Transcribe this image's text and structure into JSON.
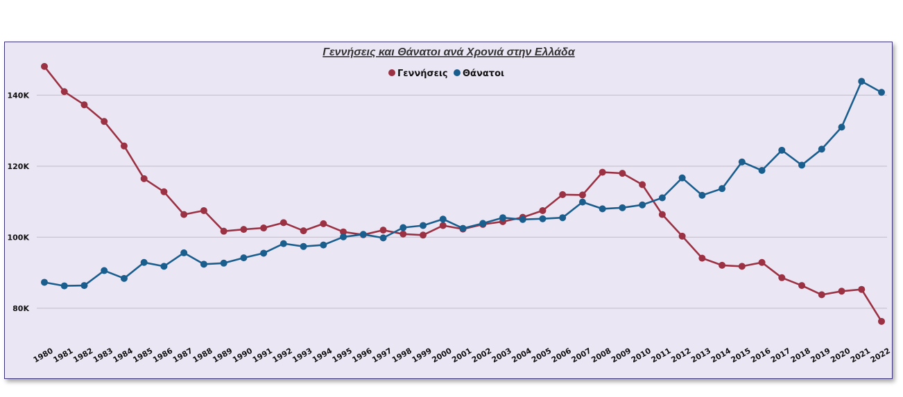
{
  "chart_data": {
    "type": "line",
    "title": "Γεννήσεις και Θάνατοι ανά Χρονιά στην Ελλάδα",
    "xlabel": "",
    "ylabel": "",
    "categories": [
      "1980",
      "1981",
      "1982",
      "1983",
      "1984",
      "1985",
      "1986",
      "1987",
      "1988",
      "1989",
      "1990",
      "1991",
      "1992",
      "1993",
      "1994",
      "1995",
      "1996",
      "1997",
      "1998",
      "1999",
      "2000",
      "2001",
      "2002",
      "2003",
      "2004",
      "2005",
      "2006",
      "2007",
      "2008",
      "2009",
      "2010",
      "2011",
      "2012",
      "2013",
      "2014",
      "2015",
      "2016",
      "2017",
      "2018",
      "2019",
      "2020",
      "2021",
      "2022"
    ],
    "ylim": [
      71000,
      151000
    ],
    "yticks": [
      80000,
      100000,
      120000,
      140000
    ],
    "ytick_labels": [
      "80K",
      "100K",
      "120K",
      "140K"
    ],
    "grid": true,
    "legend": "top-center",
    "series": [
      {
        "name": "Γεννήσεις",
        "color": "#9b3243",
        "values": [
          148100,
          141000,
          137300,
          132600,
          125700,
          116500,
          112800,
          106400,
          107500,
          101700,
          102200,
          102600,
          104100,
          101800,
          103800,
          101500,
          100700,
          102000,
          100900,
          100600,
          103300,
          102300,
          103600,
          104400,
          105600,
          107500,
          112000,
          111900,
          118300,
          118000,
          114800,
          106400,
          100300,
          94100,
          92100,
          91800,
          92900,
          88600,
          86400,
          83800,
          84800,
          85300,
          76300
        ]
      },
      {
        "name": "Θάνατοι",
        "color": "#1a5e8e",
        "values": [
          87300,
          86300,
          86400,
          90600,
          88400,
          92900,
          91800,
          95600,
          92400,
          92700,
          94200,
          95500,
          98200,
          97400,
          97800,
          100100,
          100800,
          99800,
          102700,
          103300,
          105100,
          102500,
          103900,
          105500,
          105000,
          105200,
          105500,
          109900,
          108000,
          108300,
          109100,
          111100,
          116700,
          111800,
          113700,
          121200,
          118800,
          124500,
          120300,
          124800,
          131000,
          143900,
          140800
        ]
      }
    ]
  }
}
